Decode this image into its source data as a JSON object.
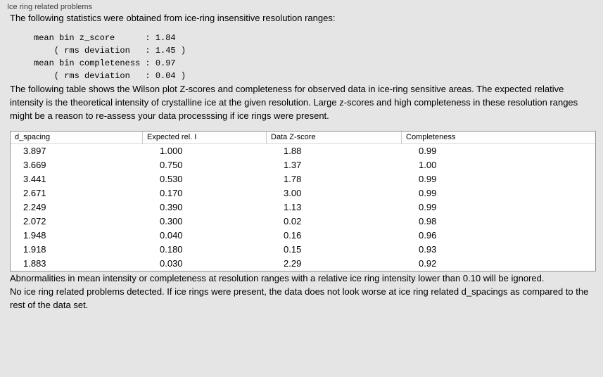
{
  "panel": {
    "title": "Ice ring related problems"
  },
  "paragraphs": {
    "intro": "The following statistics were obtained from ice-ring insensitive resolution ranges:",
    "table_desc": "The following table shows the Wilson plot Z-scores and completeness for observed data in ice-ring sensitive areas. The expected relative intensity is the theoretical intensity of crystalline ice at the given resolution. Large z-scores and high completeness in these resolution ranges might be a reason to re-assess your data processsing if ice rings were present.",
    "abnormalities": "Abnormalities in mean intensity or completeness at resolution ranges with a relative ice ring intensity lower than 0.10 will be ignored.",
    "conclusion": "No ice ring related problems detected. If ice rings were present, the data does not look worse at ice ring related d_spacings as compared to the rest of the data set."
  },
  "stats_block": {
    "lines": [
      "mean bin z_score      : 1.84",
      "    ( rms deviation   : 1.45 )",
      "mean bin completeness : 0.97",
      "    ( rms deviation   : 0.04 )"
    ]
  },
  "table": {
    "columns": [
      "d_spacing",
      "Expected rel. I",
      "Data Z-score",
      "Completeness"
    ],
    "rows": [
      [
        "3.897",
        "1.000",
        "1.88",
        "0.99"
      ],
      [
        "3.669",
        "0.750",
        "1.37",
        "1.00"
      ],
      [
        "3.441",
        "0.530",
        "1.78",
        "0.99"
      ],
      [
        "2.671",
        "0.170",
        "3.00",
        "0.99"
      ],
      [
        "2.249",
        "0.390",
        "1.13",
        "0.99"
      ],
      [
        "2.072",
        "0.300",
        "0.02",
        "0.98"
      ],
      [
        "1.948",
        "0.040",
        "0.16",
        "0.96"
      ],
      [
        "1.918",
        "0.180",
        "0.15",
        "0.93"
      ],
      [
        "1.883",
        "0.030",
        "2.29",
        "0.92"
      ]
    ]
  }
}
